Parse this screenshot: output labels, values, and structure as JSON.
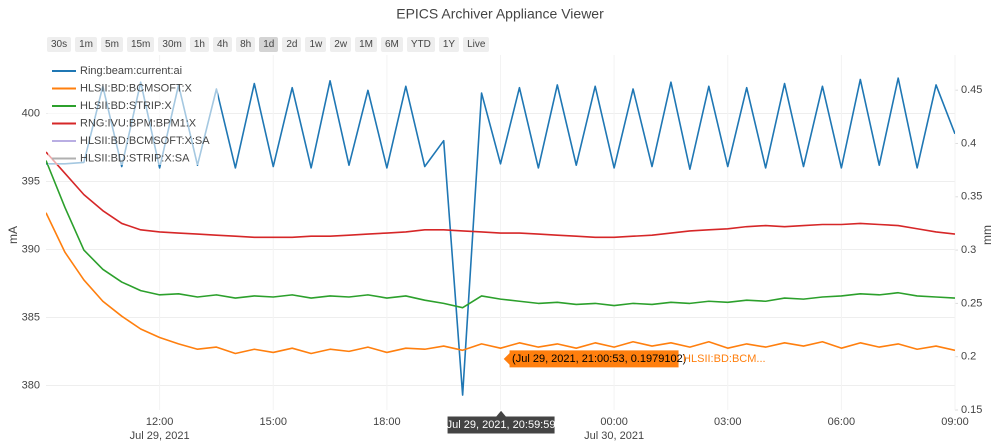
{
  "chart_data": {
    "type": "line",
    "title": "EPICS Archiver Appliance Viewer",
    "range_buttons": [
      "30s",
      "1m",
      "5m",
      "15m",
      "30m",
      "1h",
      "4h",
      "8h",
      "1d",
      "2d",
      "1w",
      "2w",
      "1M",
      "6M",
      "YTD",
      "1Y",
      "Live"
    ],
    "active_button_index": 8,
    "y_label": "mA",
    "y2_label": "mm",
    "xlim": [
      "2021-07-29 09:00",
      "2021-07-30 09:00"
    ],
    "xticks": [
      {
        "value": "2021-07-29 12:00",
        "label": "12:00\nJul 29, 2021"
      },
      {
        "value": "2021-07-29 15:00",
        "label": "15:00"
      },
      {
        "value": "2021-07-29 18:00",
        "label": "18:00"
      },
      {
        "value": "2021-07-29 21:00",
        "label": "21:00"
      },
      {
        "value": "2021-07-30 00:00",
        "label": "00:00\nJul 30, 2021"
      },
      {
        "value": "2021-07-30 03:00",
        "label": "03:00"
      },
      {
        "value": "2021-07-30 06:00",
        "label": "06:00"
      },
      {
        "value": "2021-07-30 09:00",
        "label": "09:00"
      }
    ],
    "ylim": [
      378.2,
      404.3
    ],
    "yticks": [
      380,
      385,
      390,
      395,
      400
    ],
    "y2lim": [
      0.15,
      0.483
    ],
    "y2ticks": [
      0.15,
      0.2,
      0.25,
      0.3,
      0.35,
      0.4,
      0.45
    ],
    "grid": true,
    "legend": "top-left",
    "x": [
      "2021-07-29 09:00",
      "2021-07-29 09:30",
      "2021-07-29 10:00",
      "2021-07-29 10:30",
      "2021-07-29 11:00",
      "2021-07-29 11:30",
      "2021-07-29 12:00",
      "2021-07-29 12:30",
      "2021-07-29 13:00",
      "2021-07-29 13:30",
      "2021-07-29 14:00",
      "2021-07-29 14:30",
      "2021-07-29 15:00",
      "2021-07-29 15:30",
      "2021-07-29 16:00",
      "2021-07-29 16:30",
      "2021-07-29 17:00",
      "2021-07-29 17:30",
      "2021-07-29 18:00",
      "2021-07-29 18:30",
      "2021-07-29 19:00",
      "2021-07-29 19:30",
      "2021-07-29 20:00",
      "2021-07-29 20:30",
      "2021-07-29 21:00",
      "2021-07-29 21:30",
      "2021-07-29 22:00",
      "2021-07-29 22:30",
      "2021-07-29 23:00",
      "2021-07-29 23:30",
      "2021-07-30 00:00",
      "2021-07-30 00:30",
      "2021-07-30 01:00",
      "2021-07-30 01:30",
      "2021-07-30 02:00",
      "2021-07-30 02:30",
      "2021-07-30 03:00",
      "2021-07-30 03:30",
      "2021-07-30 04:00",
      "2021-07-30 04:30",
      "2021-07-30 05:00",
      "2021-07-30 05:30",
      "2021-07-30 06:00",
      "2021-07-30 06:30",
      "2021-07-30 07:00",
      "2021-07-30 07:30",
      "2021-07-30 08:00",
      "2021-07-30 08:30",
      "2021-07-30 09:00"
    ],
    "series": [
      {
        "name": "Ring:beam:current:ai",
        "color": "#1f77b4",
        "axis": "y",
        "values": [
          396.3,
          396.3,
          396.4,
          402.0,
          396.1,
          402.3,
          396.0,
          402.1,
          396.2,
          401.8,
          396.0,
          402.2,
          396.1,
          401.9,
          396.0,
          402.4,
          396.2,
          401.7,
          396.0,
          402.0,
          396.1,
          398.0,
          379.3,
          401.5,
          396.3,
          401.9,
          396.0,
          402.1,
          396.2,
          402.0,
          396.0,
          401.8,
          396.1,
          402.3,
          395.9,
          402.0,
          396.1,
          401.9,
          396.0,
          402.2,
          396.1,
          402.0,
          396.0,
          402.5,
          396.2,
          402.6,
          396.0,
          402.1,
          398.5
        ]
      },
      {
        "name": "HLSII:BD:BCMSOFT:X",
        "color": "#ff7f0e",
        "axis": "y2",
        "values": [
          0.335,
          0.298,
          0.272,
          0.252,
          0.238,
          0.226,
          0.218,
          0.212,
          0.207,
          0.209,
          0.203,
          0.207,
          0.204,
          0.208,
          0.203,
          0.207,
          0.205,
          0.209,
          0.204,
          0.208,
          0.207,
          0.21,
          0.206,
          0.212,
          0.208,
          0.213,
          0.209,
          0.212,
          0.208,
          0.213,
          0.209,
          0.214,
          0.21,
          0.213,
          0.209,
          0.214,
          0.208,
          0.212,
          0.209,
          0.213,
          0.21,
          0.214,
          0.208,
          0.213,
          0.209,
          0.212,
          0.207,
          0.21,
          0.206
        ]
      },
      {
        "name": "HLSII:BD:STRIP:X",
        "color": "#2ca02c",
        "axis": "y2",
        "values": [
          0.384,
          0.34,
          0.3,
          0.282,
          0.27,
          0.262,
          0.258,
          0.259,
          0.256,
          0.258,
          0.255,
          0.257,
          0.256,
          0.258,
          0.255,
          0.257,
          0.256,
          0.258,
          0.255,
          0.257,
          0.253,
          0.25,
          0.246,
          0.257,
          0.254,
          0.252,
          0.25,
          0.251,
          0.249,
          0.25,
          0.248,
          0.25,
          0.249,
          0.251,
          0.25,
          0.252,
          0.251,
          0.253,
          0.252,
          0.255,
          0.254,
          0.256,
          0.257,
          0.259,
          0.258,
          0.26,
          0.257,
          0.256,
          0.255
        ]
      },
      {
        "name": "RNG:IVU:BPM:BPM1:X",
        "color": "#d62728",
        "axis": "y2",
        "values": [
          0.392,
          0.372,
          0.352,
          0.337,
          0.325,
          0.319,
          0.317,
          0.316,
          0.315,
          0.314,
          0.313,
          0.312,
          0.312,
          0.312,
          0.313,
          0.313,
          0.314,
          0.315,
          0.316,
          0.317,
          0.319,
          0.319,
          0.318,
          0.317,
          0.316,
          0.316,
          0.315,
          0.314,
          0.313,
          0.312,
          0.312,
          0.313,
          0.314,
          0.316,
          0.318,
          0.319,
          0.32,
          0.322,
          0.323,
          0.322,
          0.323,
          0.324,
          0.324,
          0.325,
          0.324,
          0.323,
          0.32,
          0.317,
          0.315
        ]
      },
      {
        "name": "HLSII:BD:BCMSOFT:X:SA",
        "color": "#b9aee3",
        "axis": "y2",
        "values": [
          null,
          null,
          null,
          null,
          null,
          null,
          null,
          null,
          null,
          null,
          null,
          null,
          null,
          null,
          null,
          null,
          null,
          null,
          null,
          null,
          null,
          null,
          null,
          null,
          null,
          null,
          null,
          null,
          null,
          null,
          null,
          null,
          null,
          null,
          null,
          null,
          null,
          null,
          null,
          null,
          null,
          null,
          null,
          null,
          null,
          null,
          null,
          null,
          null
        ]
      },
      {
        "name": "HLSII:BD:STRIP:X:SA",
        "color": "#b0b0b0",
        "axis": "y2",
        "values": [
          null,
          null,
          null,
          null,
          null,
          null,
          null,
          null,
          null,
          null,
          null,
          null,
          null,
          null,
          null,
          null,
          null,
          null,
          null,
          null,
          null,
          null,
          null,
          null,
          null,
          null,
          null,
          null,
          null,
          null,
          null,
          null,
          null,
          null,
          null,
          null,
          null,
          null,
          null,
          null,
          null,
          null,
          null,
          null,
          null,
          null,
          null,
          null,
          null
        ]
      }
    ],
    "hover": {
      "x": "2021-07-29 21:00:53",
      "y": 0.1979102,
      "text": "(Jul 29, 2021, 21:00:53, 0.1979102)",
      "series_label": "HLSII:BD:BCM...",
      "x_label": "Jul 29, 2021, 20:59:59"
    }
  }
}
